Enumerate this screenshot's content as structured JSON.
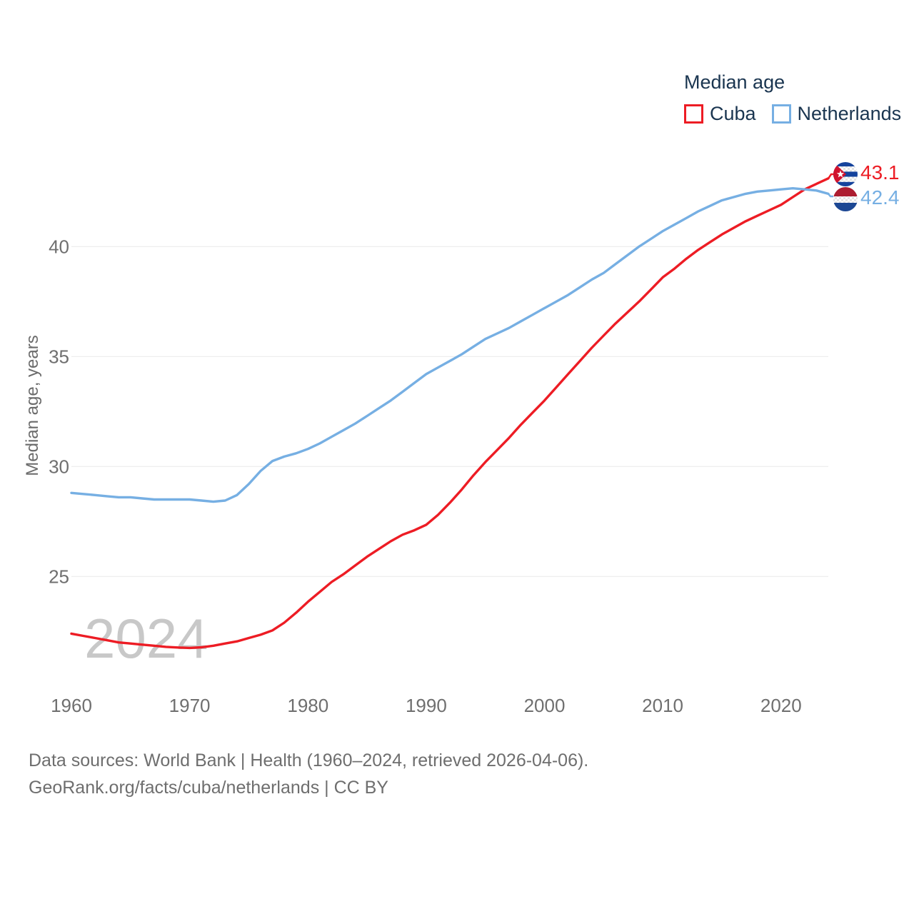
{
  "legend": {
    "title": "Median age",
    "items": [
      {
        "label": "Cuba",
        "color": "#ed1c24"
      },
      {
        "label": "Netherlands",
        "color": "#76afe3"
      }
    ]
  },
  "watermark": "2024",
  "y_axis": {
    "title": "Median age, years",
    "ticks": [
      25,
      30,
      35,
      40
    ]
  },
  "x_axis": {
    "ticks": [
      1960,
      1970,
      1980,
      1990,
      2000,
      2010,
      2020
    ]
  },
  "end_labels": [
    {
      "series": "Cuba",
      "value": "43.1",
      "color": "#ed1c24",
      "flag": "cuba-flag"
    },
    {
      "series": "Netherlands",
      "value": "42.4",
      "color": "#76afe3",
      "flag": "netherlands-flag"
    }
  ],
  "footer": {
    "line1": "Data sources: World Bank | Health (1960–2024, retrieved 2026-04-06).",
    "line2": "GeoRank.org/facts/cuba/netherlands | CC BY"
  },
  "chart_data": {
    "type": "line",
    "title": "Median age",
    "ylabel": "Median age, years",
    "xlabel": "",
    "ylim": [
      21.5,
      43.5
    ],
    "xlim": [
      1960,
      2024
    ],
    "grid": "horizontal",
    "legend_position": "top-right",
    "x": [
      1960,
      1961,
      1962,
      1963,
      1964,
      1965,
      1966,
      1967,
      1968,
      1969,
      1970,
      1971,
      1972,
      1973,
      1974,
      1975,
      1976,
      1977,
      1978,
      1979,
      1980,
      1981,
      1982,
      1983,
      1984,
      1985,
      1986,
      1987,
      1988,
      1989,
      1990,
      1991,
      1992,
      1993,
      1994,
      1995,
      1996,
      1997,
      1998,
      1999,
      2000,
      2001,
      2002,
      2003,
      2004,
      2005,
      2006,
      2007,
      2008,
      2009,
      2010,
      2011,
      2012,
      2013,
      2014,
      2015,
      2016,
      2017,
      2018,
      2019,
      2020,
      2021,
      2022,
      2023,
      2024
    ],
    "series": [
      {
        "name": "Cuba",
        "color": "#ed1c24",
        "end_value": 43.1,
        "values": [
          22.4,
          22.3,
          22.2,
          22.1,
          22.0,
          21.95,
          21.9,
          21.85,
          21.8,
          21.77,
          21.75,
          21.78,
          21.85,
          21.95,
          22.05,
          22.2,
          22.35,
          22.55,
          22.9,
          23.35,
          23.85,
          24.3,
          24.75,
          25.1,
          25.5,
          25.9,
          26.25,
          26.6,
          26.9,
          27.1,
          27.35,
          27.8,
          28.35,
          28.95,
          29.6,
          30.2,
          30.75,
          31.3,
          31.9,
          32.45,
          33.0,
          33.6,
          34.2,
          34.8,
          35.4,
          35.95,
          36.5,
          37.0,
          37.5,
          38.05,
          38.6,
          39.0,
          39.45,
          39.85,
          40.2,
          40.55,
          40.85,
          41.15,
          41.4,
          41.65,
          41.9,
          42.25,
          42.6,
          42.85,
          43.1
        ]
      },
      {
        "name": "Netherlands",
        "color": "#76afe3",
        "end_value": 42.4,
        "values": [
          28.8,
          28.75,
          28.7,
          28.65,
          28.6,
          28.6,
          28.55,
          28.5,
          28.5,
          28.5,
          28.5,
          28.45,
          28.4,
          28.45,
          28.7,
          29.2,
          29.8,
          30.25,
          30.45,
          30.6,
          30.8,
          31.05,
          31.35,
          31.65,
          31.95,
          32.3,
          32.65,
          33.0,
          33.4,
          33.8,
          34.2,
          34.5,
          34.8,
          35.1,
          35.45,
          35.8,
          36.05,
          36.3,
          36.6,
          36.9,
          37.2,
          37.5,
          37.8,
          38.15,
          38.5,
          38.8,
          39.2,
          39.6,
          40.0,
          40.35,
          40.7,
          41.0,
          41.3,
          41.6,
          41.85,
          42.1,
          42.25,
          42.4,
          42.5,
          42.55,
          42.6,
          42.65,
          42.6,
          42.55,
          42.4
        ]
      }
    ]
  }
}
